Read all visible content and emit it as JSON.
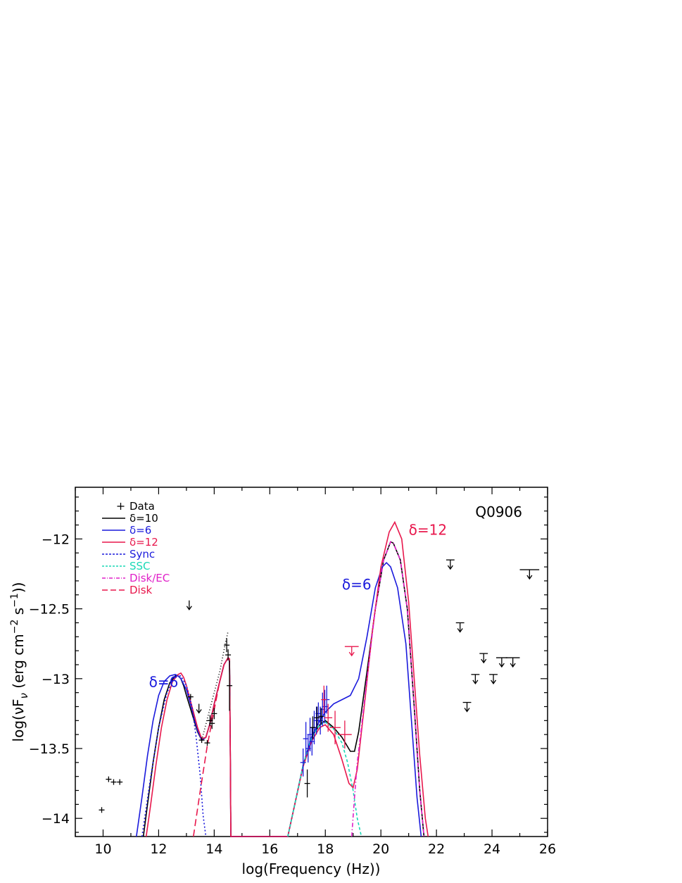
{
  "chart_data": {
    "type": "line",
    "title": "Q0906",
    "xlabel": "log(Frequency (Hz))",
    "ylabel_parts": {
      "a": "log(νF",
      "b": "ν",
      "c": " (erg cm",
      "d": "−2",
      "e": " s",
      "f": "−1",
      "g": "))"
    },
    "xlim": [
      9,
      26
    ],
    "ylim": [
      -14.13,
      -11.63
    ],
    "x_ticks": [
      10,
      12,
      14,
      16,
      18,
      20,
      22,
      24,
      26
    ],
    "x_tick_labels": [
      "10",
      "12",
      "14",
      "16",
      "18",
      "20",
      "22",
      "24",
      "26"
    ],
    "y_ticks": [
      -14,
      -13.5,
      -13,
      -12.5,
      -12
    ],
    "y_tick_labels": [
      "−14",
      "−13.5",
      "−13",
      "−12.5",
      "−12"
    ],
    "legend": {
      "position": "top-left",
      "entries": [
        {
          "label": "Data",
          "color": "#000000",
          "style": "plus"
        },
        {
          "label": "δ=10",
          "color": "#000000",
          "style": "solid"
        },
        {
          "label": "δ=6",
          "color": "#1a1adc",
          "style": "solid"
        },
        {
          "label": "δ=12",
          "color": "#e8174c",
          "style": "solid"
        },
        {
          "label": "Sync",
          "color": "#1a1adc",
          "style": "short-dash"
        },
        {
          "label": "SSC",
          "color": "#19d8b6",
          "style": "short-dash"
        },
        {
          "label": "Disk/EC",
          "color": "#e020c8",
          "style": "dash-dot"
        },
        {
          "label": "Disk",
          "color": "#e8174c",
          "style": "long-dash"
        }
      ]
    },
    "annotations": [
      {
        "text": "δ=6",
        "x": 11.65,
        "y": -13.06,
        "color": "#1a1adc"
      },
      {
        "text": "δ=6",
        "x": 18.6,
        "y": -12.36,
        "color": "#1a1adc"
      },
      {
        "text": "δ=12",
        "x": 21.0,
        "y": -11.97,
        "color": "#e8174c"
      }
    ],
    "series": [
      {
        "name": "δ=10",
        "color": "#000000",
        "dash": "",
        "x": [
          11.45,
          11.6,
          11.8,
          12.0,
          12.2,
          12.4,
          12.6,
          12.7,
          12.8,
          12.9,
          13.0,
          13.2,
          13.4,
          13.55,
          13.7,
          13.85,
          14.0,
          14.2,
          14.35,
          14.5,
          14.55,
          14.58,
          14.6,
          16.65,
          16.9,
          17.2,
          17.5,
          17.8,
          18.0,
          18.3,
          18.6,
          18.9,
          19.05,
          19.2,
          19.5,
          19.8,
          20.1,
          20.35,
          20.45,
          20.7,
          20.95,
          21.2,
          21.4,
          21.55
        ],
        "y": [
          -14.14,
          -13.9,
          -13.6,
          -13.35,
          -13.15,
          -13.03,
          -12.98,
          -12.98,
          -13.0,
          -13.05,
          -13.12,
          -13.25,
          -13.38,
          -13.44,
          -13.42,
          -13.32,
          -13.18,
          -13.02,
          -12.9,
          -12.85,
          -12.86,
          -13.5,
          -14.14,
          -14.14,
          -13.9,
          -13.62,
          -13.42,
          -13.33,
          -13.3,
          -13.35,
          -13.42,
          -13.52,
          -13.52,
          -13.38,
          -12.95,
          -12.5,
          -12.15,
          -12.02,
          -12.03,
          -12.15,
          -12.5,
          -13.2,
          -13.8,
          -14.14
        ]
      },
      {
        "name": "δ=6",
        "color": "#1a1adc",
        "dash": "",
        "x": [
          11.2,
          11.4,
          11.6,
          11.8,
          12.0,
          12.2,
          12.4,
          12.6,
          12.7,
          12.8,
          13.0,
          13.2,
          13.4,
          13.55,
          13.7,
          13.85,
          14.0,
          14.2,
          14.35,
          14.5,
          14.55,
          14.58,
          14.6,
          16.65,
          16.9,
          17.2,
          17.5,
          17.8,
          18.0,
          18.3,
          18.6,
          18.9,
          19.2,
          19.5,
          19.8,
          20.05,
          20.2,
          20.35,
          20.6,
          20.9,
          21.1,
          21.3,
          21.45
        ],
        "y": [
          -14.14,
          -13.85,
          -13.55,
          -13.3,
          -13.12,
          -13.02,
          -12.98,
          -12.97,
          -12.98,
          -13.0,
          -13.08,
          -13.22,
          -13.37,
          -13.44,
          -13.42,
          -13.32,
          -13.18,
          -13.02,
          -12.9,
          -12.85,
          -12.86,
          -13.5,
          -14.14,
          -14.14,
          -13.9,
          -13.62,
          -13.42,
          -13.3,
          -13.24,
          -13.18,
          -13.15,
          -13.12,
          -13.0,
          -12.7,
          -12.35,
          -12.2,
          -12.17,
          -12.2,
          -12.35,
          -12.75,
          -13.3,
          -13.85,
          -14.14
        ]
      },
      {
        "name": "δ=12",
        "color": "#e8174c",
        "dash": "",
        "x": [
          11.55,
          11.7,
          11.9,
          12.1,
          12.3,
          12.5,
          12.7,
          12.8,
          12.9,
          13.0,
          13.2,
          13.4,
          13.55,
          13.7,
          13.85,
          14.0,
          14.2,
          14.35,
          14.5,
          14.55,
          14.58,
          14.6,
          16.65,
          16.9,
          17.2,
          17.5,
          17.8,
          18.0,
          18.3,
          18.6,
          18.85,
          19.0,
          19.15,
          19.4,
          19.7,
          20.0,
          20.3,
          20.5,
          20.75,
          21.0,
          21.2,
          21.4,
          21.6,
          21.7
        ],
        "y": [
          -14.14,
          -13.92,
          -13.62,
          -13.35,
          -13.15,
          -13.02,
          -12.97,
          -12.96,
          -12.99,
          -13.05,
          -13.2,
          -13.35,
          -13.43,
          -13.42,
          -13.32,
          -13.18,
          -13.02,
          -12.9,
          -12.85,
          -12.86,
          -13.5,
          -14.14,
          -14.14,
          -13.9,
          -13.63,
          -13.45,
          -13.35,
          -13.33,
          -13.4,
          -13.58,
          -13.75,
          -13.78,
          -13.65,
          -13.2,
          -12.65,
          -12.2,
          -11.95,
          -11.88,
          -12.0,
          -12.45,
          -13.0,
          -13.55,
          -14.0,
          -14.14
        ]
      },
      {
        "name": "Sync",
        "color": "#1a1adc",
        "dash": "2,3",
        "x": [
          11.4,
          11.7,
          12.0,
          12.3,
          12.6,
          12.8,
          13.0,
          13.2,
          13.35,
          13.5,
          13.6,
          13.7
        ],
        "y": [
          -14.14,
          -13.72,
          -13.35,
          -13.1,
          -12.98,
          -12.98,
          -13.05,
          -13.2,
          -13.42,
          -13.7,
          -13.98,
          -14.14
        ]
      },
      {
        "name": "SSC",
        "color": "#19d8b6",
        "dash": "4,3",
        "x": [
          16.65,
          16.9,
          17.2,
          17.5,
          17.8,
          18.0,
          18.3,
          18.6,
          18.8,
          19.0,
          19.15,
          19.3
        ],
        "y": [
          -14.14,
          -13.9,
          -13.62,
          -13.42,
          -13.33,
          -13.31,
          -13.36,
          -13.46,
          -13.6,
          -13.8,
          -14.0,
          -14.14
        ]
      },
      {
        "name": "Disk/EC",
        "color": "#e020c8",
        "dash": "6,3,1.5,3",
        "x": [
          18.95,
          19.05,
          19.15,
          19.3,
          19.5,
          19.8,
          20.1,
          20.35,
          20.45,
          20.7,
          20.95,
          21.2,
          21.4,
          21.55
        ],
        "y": [
          -14.14,
          -13.85,
          -13.6,
          -13.35,
          -13.0,
          -12.5,
          -12.15,
          -12.02,
          -12.03,
          -12.15,
          -12.5,
          -13.2,
          -13.8,
          -14.14
        ]
      },
      {
        "name": "Disk",
        "color": "#e8174c",
        "dash": "10,5",
        "x": [
          13.25,
          13.5,
          13.75,
          14.0,
          14.2,
          14.35,
          14.5,
          14.55,
          14.58,
          14.6
        ],
        "y": [
          -14.14,
          -13.8,
          -13.48,
          -13.22,
          -13.02,
          -12.9,
          -12.85,
          -12.86,
          -13.5,
          -14.14
        ]
      },
      {
        "name": "",
        "color": "#000000",
        "dash": "1,3",
        "x": [
          13.55,
          13.8,
          14.0,
          14.2,
          14.4,
          14.5
        ],
        "y": [
          -13.44,
          -13.25,
          -13.1,
          -12.95,
          -12.75,
          -12.66
        ]
      }
    ],
    "data_points": [
      {
        "x": 9.95,
        "y": -13.94,
        "xerr": 0.08,
        "yerr": 0.02,
        "color": "#000000"
      },
      {
        "x": 10.2,
        "y": -13.72,
        "xerr": 0.08,
        "yerr": 0.02,
        "color": "#000000"
      },
      {
        "x": 10.38,
        "y": -13.74,
        "xerr": 0.08,
        "yerr": 0.02,
        "color": "#000000"
      },
      {
        "x": 10.6,
        "y": -13.74,
        "xerr": 0.08,
        "yerr": 0.02,
        "color": "#000000"
      },
      {
        "x": 13.15,
        "y": -13.13,
        "xerr": 0.08,
        "yerr": 0.02,
        "color": "#000000"
      },
      {
        "x": 13.55,
        "y": -13.44,
        "xerr": 0.08,
        "yerr": 0.02,
        "color": "#000000"
      },
      {
        "x": 13.75,
        "y": -13.46,
        "xerr": 0.08,
        "yerr": 0.02,
        "color": "#000000"
      },
      {
        "x": 13.85,
        "y": -13.3,
        "xerr": 0.08,
        "yerr": 0.04,
        "color": "#000000"
      },
      {
        "x": 13.92,
        "y": -13.32,
        "xerr": 0.08,
        "yerr": 0.04,
        "color": "#000000"
      },
      {
        "x": 14.0,
        "y": -13.25,
        "xerr": 0.08,
        "yerr": 0.04,
        "color": "#000000"
      },
      {
        "x": 14.45,
        "y": -12.76,
        "xerr": 0.08,
        "yerr": 0.05,
        "color": "#000000"
      },
      {
        "x": 14.5,
        "y": -12.83,
        "xerr": 0.06,
        "yerr": 0.04,
        "color": "#000000"
      },
      {
        "x": 14.55,
        "y": -13.05,
        "xerr": 0.1,
        "yerr": 0.18,
        "color": "#000000"
      },
      {
        "x": 17.2,
        "y": -13.6,
        "xerr": 0.1,
        "yerr": 0.1,
        "color": "#1a1adc"
      },
      {
        "x": 17.3,
        "y": -13.43,
        "xerr": 0.1,
        "yerr": 0.12,
        "color": "#1a1adc"
      },
      {
        "x": 17.38,
        "y": -13.5,
        "xerr": 0.1,
        "yerr": 0.1,
        "color": "#1a1adc"
      },
      {
        "x": 17.45,
        "y": -13.4,
        "xerr": 0.1,
        "yerr": 0.12,
        "color": "#1a1adc"
      },
      {
        "x": 17.52,
        "y": -13.45,
        "xerr": 0.08,
        "yerr": 0.1,
        "color": "#1a1adc"
      },
      {
        "x": 17.6,
        "y": -13.35,
        "xerr": 0.08,
        "yerr": 0.12,
        "color": "#1a1adc"
      },
      {
        "x": 17.68,
        "y": -13.3,
        "xerr": 0.08,
        "yerr": 0.1,
        "color": "#1a1adc"
      },
      {
        "x": 17.75,
        "y": -13.25,
        "xerr": 0.08,
        "yerr": 0.08,
        "color": "#1a1adc"
      },
      {
        "x": 17.82,
        "y": -13.3,
        "xerr": 0.08,
        "yerr": 0.1,
        "color": "#1a1adc"
      },
      {
        "x": 17.9,
        "y": -13.22,
        "xerr": 0.08,
        "yerr": 0.12,
        "color": "#1a1adc"
      },
      {
        "x": 17.98,
        "y": -13.2,
        "xerr": 0.08,
        "yerr": 0.12,
        "color": "#1a1adc"
      },
      {
        "x": 18.05,
        "y": -13.15,
        "xerr": 0.08,
        "yerr": 0.1,
        "color": "#1a1adc"
      },
      {
        "x": 17.35,
        "y": -13.75,
        "xerr": 0.06,
        "yerr": 0.1,
        "color": "#000000"
      },
      {
        "x": 17.55,
        "y": -13.35,
        "xerr": 0.08,
        "yerr": 0.08,
        "color": "#000000"
      },
      {
        "x": 17.7,
        "y": -13.28,
        "xerr": 0.08,
        "yerr": 0.08,
        "color": "#000000"
      },
      {
        "x": 17.85,
        "y": -13.27,
        "xerr": 0.08,
        "yerr": 0.06,
        "color": "#000000"
      },
      {
        "x": 17.95,
        "y": -13.15,
        "xerr": 0.08,
        "yerr": 0.1,
        "color": "#e8174c"
      },
      {
        "x": 18.1,
        "y": -13.28,
        "xerr": 0.15,
        "yerr": 0.1,
        "color": "#e8174c"
      },
      {
        "x": 18.35,
        "y": -13.35,
        "xerr": 0.2,
        "yerr": 0.12,
        "color": "#e8174c"
      },
      {
        "x": 18.7,
        "y": -13.4,
        "xerr": 0.25,
        "yerr": 0.1,
        "color": "#e8174c"
      }
    ],
    "upper_limits": [
      {
        "x": 13.1,
        "y": -12.44,
        "bar": 0,
        "color": "#000000"
      },
      {
        "x": 13.45,
        "y": -13.18,
        "bar": 0,
        "color": "#000000"
      },
      {
        "x": 18.95,
        "y": -12.77,
        "bar": 0.25,
        "color": "#e8174c"
      },
      {
        "x": 22.5,
        "y": -12.15,
        "bar": 0.15,
        "color": "#000000"
      },
      {
        "x": 22.85,
        "y": -12.6,
        "bar": 0.15,
        "color": "#000000"
      },
      {
        "x": 23.1,
        "y": -13.17,
        "bar": 0.15,
        "color": "#000000"
      },
      {
        "x": 23.4,
        "y": -12.97,
        "bar": 0.15,
        "color": "#000000"
      },
      {
        "x": 23.7,
        "y": -12.82,
        "bar": 0.15,
        "color": "#000000"
      },
      {
        "x": 24.05,
        "y": -12.97,
        "bar": 0.15,
        "color": "#000000"
      },
      {
        "x": 24.35,
        "y": -12.85,
        "bar": 0.2,
        "color": "#000000"
      },
      {
        "x": 24.75,
        "y": -12.85,
        "bar": 0.25,
        "color": "#000000"
      },
      {
        "x": 25.35,
        "y": -12.22,
        "bar": 0.35,
        "color": "#000000"
      }
    ]
  }
}
